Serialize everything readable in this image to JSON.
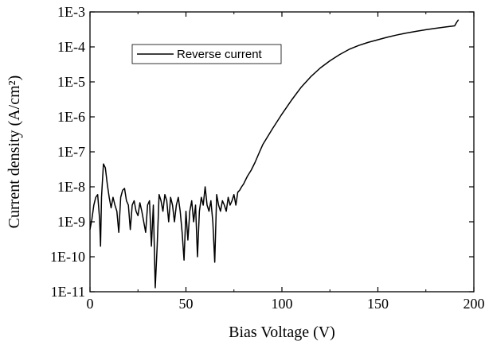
{
  "chart_data": {
    "type": "line",
    "title": "",
    "xlabel": "Bias Voltage (V)",
    "ylabel": "Current density (A/cm²)",
    "xlim": [
      0,
      200
    ],
    "ylim": [
      1e-11,
      0.001
    ],
    "yscale": "log",
    "grid": false,
    "legend_position": "top-left",
    "x_ticks": [
      0,
      50,
      100,
      150,
      200
    ],
    "x_tick_labels": [
      "0",
      "50",
      "100",
      "150",
      "200"
    ],
    "y_ticks": [
      1e-11,
      1e-10,
      1e-09,
      1e-08,
      1e-07,
      1e-06,
      1e-05,
      0.0001,
      0.001
    ],
    "y_tick_labels": [
      "1E-11",
      "1E-10",
      "1E-9",
      "1E-8",
      "1E-7",
      "1E-6",
      "1E-5",
      "1E-4",
      "1E-3"
    ],
    "series": [
      {
        "name": "Reverse current",
        "color": "#000000",
        "x": [
          0,
          1,
          2,
          3,
          4,
          5,
          5.5,
          6,
          7,
          8,
          9,
          10,
          11,
          12,
          13,
          14,
          15,
          16,
          17,
          18,
          19,
          20,
          21,
          22,
          23,
          24,
          25,
          26,
          27,
          28,
          29,
          30,
          31,
          32,
          33,
          34,
          35,
          36,
          37,
          38,
          39,
          40,
          41,
          42,
          43,
          44,
          45,
          46,
          47,
          48,
          49,
          50,
          51,
          52,
          53,
          54,
          55,
          56,
          57,
          58,
          59,
          60,
          61,
          62,
          63,
          64,
          65,
          66,
          67,
          68,
          69,
          70,
          71,
          72,
          73,
          74,
          75,
          76,
          77,
          78,
          79,
          80,
          82,
          84,
          86,
          88,
          90,
          95,
          100,
          105,
          110,
          115,
          120,
          125,
          130,
          135,
          140,
          145,
          150,
          155,
          160,
          165,
          170,
          175,
          180,
          185,
          190,
          191,
          192
        ],
        "y": [
          6e-10,
          1.2e-09,
          3e-09,
          5e-09,
          6e-09,
          1.2e-09,
          2e-10,
          5e-09,
          4.5e-08,
          3.5e-08,
          1.2e-08,
          5e-09,
          2.5e-09,
          5e-09,
          3e-09,
          2e-09,
          5e-10,
          5e-09,
          8e-09,
          9e-09,
          4e-09,
          3e-09,
          6e-10,
          3e-09,
          4e-09,
          2e-09,
          1.5e-09,
          3.5e-09,
          2e-09,
          1e-09,
          5e-10,
          3e-09,
          4e-09,
          2e-10,
          3e-09,
          1.3e-11,
          2e-10,
          6e-09,
          4e-09,
          2e-09,
          6e-09,
          4e-09,
          1e-09,
          5e-09,
          3e-09,
          1e-09,
          3e-09,
          5e-09,
          2e-09,
          5e-10,
          8e-11,
          2e-09,
          3e-10,
          2e-09,
          4e-09,
          1e-09,
          3e-09,
          1e-10,
          2e-09,
          5e-09,
          3e-09,
          1e-08,
          3e-09,
          2e-09,
          4e-09,
          1e-09,
          7e-11,
          6e-09,
          3e-09,
          2e-09,
          4e-09,
          3e-09,
          2e-09,
          5e-09,
          3e-09,
          4e-09,
          6e-09,
          3e-09,
          7e-09,
          8e-09,
          1e-08,
          1.2e-08,
          2e-08,
          3e-08,
          5e-08,
          9e-08,
          1.6e-07,
          4.5e-07,
          1.2e-06,
          3e-06,
          7e-06,
          1.4e-05,
          2.5e-05,
          4e-05,
          6e-05,
          8.5e-05,
          0.00011,
          0.000135,
          0.00016,
          0.00019,
          0.00022,
          0.00025,
          0.00028,
          0.00031,
          0.00034,
          0.00037,
          0.0004,
          0.0005,
          0.0006
        ]
      }
    ]
  }
}
